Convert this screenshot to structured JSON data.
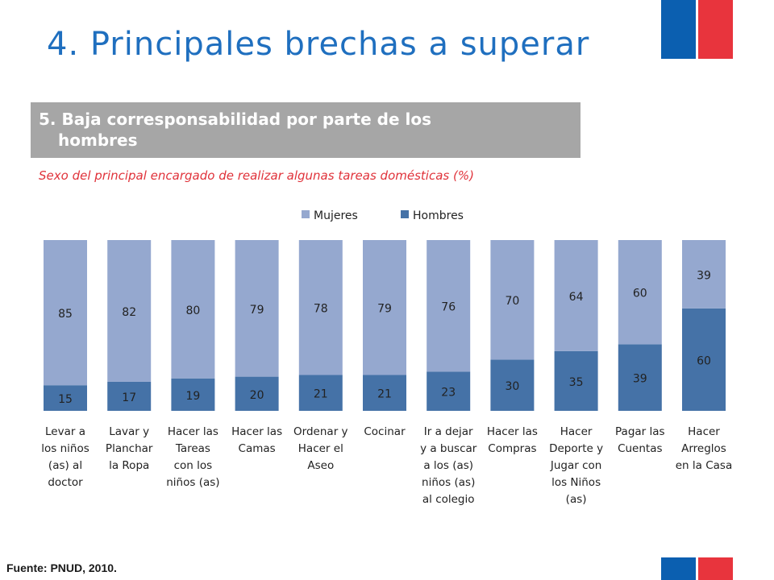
{
  "title": "4. Principales brechas a superar",
  "subtitle_line1": "5. Baja corresponsabilidad por parte de los",
  "subtitle_line2": "hombres",
  "chart_subtitle": "Sexo del principal encargado de realizar algunas tareas domésticas (%)",
  "source": "Fuente: PNUD, 2010.",
  "colors": {
    "mujeres": "#95a8cf",
    "hombres": "#4572a7",
    "flag_blue": "#0b5fb0",
    "flag_red": "#e8343d"
  },
  "chart_data": {
    "type": "bar",
    "stacked": true,
    "legend_position": "top",
    "categories": [
      [
        "Levar a",
        "los niños",
        "(as) al",
        "doctor"
      ],
      [
        "Lavar y",
        "Planchar",
        "la Ropa"
      ],
      [
        "Hacer las",
        "Tareas",
        "con los",
        "niños (as)"
      ],
      [
        "Hacer las",
        "Camas"
      ],
      [
        "Ordenar y",
        "Hacer el",
        "Aseo"
      ],
      [
        "Cocinar"
      ],
      [
        "Ir a dejar",
        "y a buscar",
        "a los (as)",
        "niños (as)",
        "al colegio"
      ],
      [
        "Hacer las",
        "Compras"
      ],
      [
        "Hacer",
        "Deporte y",
        "Jugar con",
        "los Niños",
        "(as)"
      ],
      [
        "Pagar las",
        "Cuentas"
      ],
      [
        "Hacer",
        "Arreglos",
        "en la Casa"
      ]
    ],
    "series": [
      {
        "name": "Hombres",
        "values": [
          15,
          17,
          19,
          20,
          21,
          21,
          23,
          30,
          35,
          39,
          60
        ]
      },
      {
        "name": "Mujeres",
        "values": [
          85,
          82,
          80,
          79,
          78,
          79,
          76,
          70,
          64,
          60,
          39
        ]
      }
    ],
    "legend": [
      "Mujeres",
      "Hombres"
    ],
    "ylim": [
      0,
      100
    ]
  }
}
